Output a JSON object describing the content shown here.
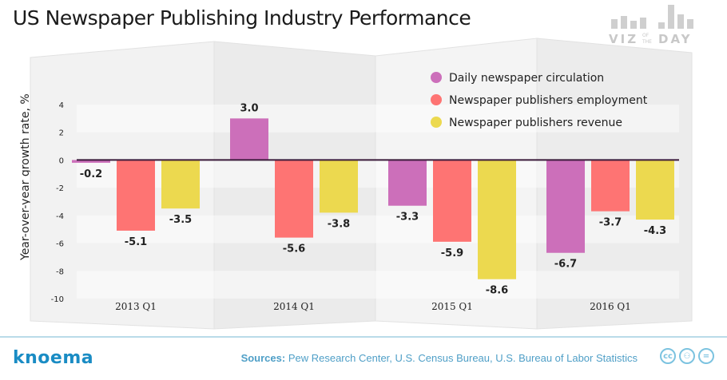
{
  "header": {
    "title": "US Newspaper Publishing Industry Performance",
    "logo_text": "VIZ OF THE DAY"
  },
  "footer": {
    "brand": "knoema",
    "sources_label": "Sources:",
    "sources_text": "Pew Research Center, U.S. Census Bureau, U.S. Bureau of Labor Statistics",
    "license_icons": [
      "cc",
      "by",
      "nd"
    ]
  },
  "colors": {
    "circulation": "#cc6fba",
    "employment": "#fe7473",
    "revenue": "#ecd94f"
  },
  "chart_data": {
    "type": "bar",
    "title": "US Newspaper Publishing Industry Performance",
    "ylabel": "Year-over-year growth rate, %",
    "xlabel": "",
    "ylim": [
      -10,
      4
    ],
    "yticks": [
      4,
      2,
      0,
      -2,
      -4,
      -6,
      -8,
      -10
    ],
    "categories": [
      "2013 Q1",
      "2014 Q1",
      "2015 Q1",
      "2016 Q1"
    ],
    "legend_position": "top-right",
    "series": [
      {
        "name": "Daily newspaper circulation",
        "values": [
          -0.2,
          3.0,
          -3.3,
          -6.7
        ]
      },
      {
        "name": "Newspaper publishers employment",
        "values": [
          -5.1,
          -5.6,
          -5.9,
          -3.7
        ]
      },
      {
        "name": "Newspaper publishers revenue",
        "values": [
          -3.5,
          -3.8,
          -8.6,
          -4.3
        ]
      }
    ]
  }
}
